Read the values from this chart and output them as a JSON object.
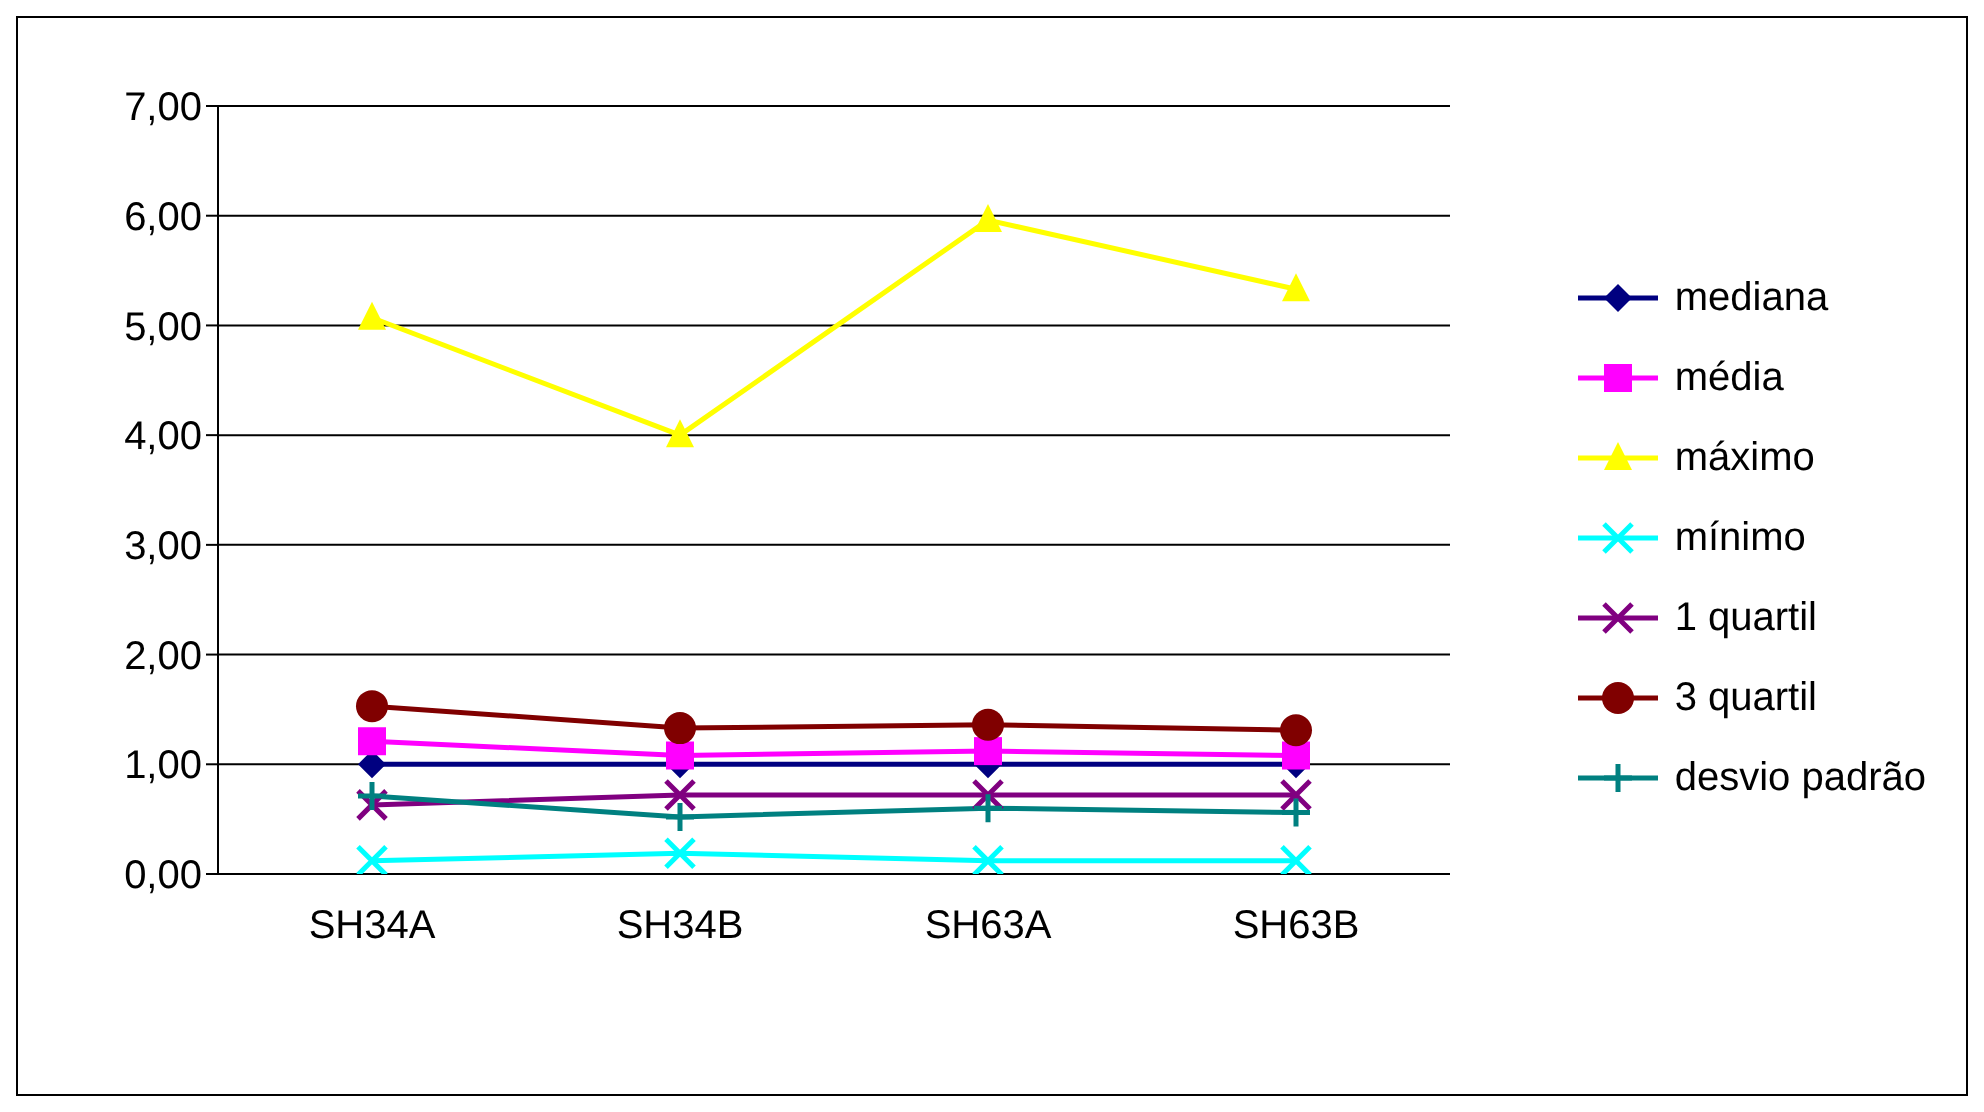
{
  "chart_data": {
    "type": "line",
    "categories": [
      "SH34A",
      "SH34B",
      "SH63A",
      "SH63B"
    ],
    "series": [
      {
        "name": "mediana",
        "color": "#000080",
        "marker": "diamond",
        "values": [
          1.0,
          1.0,
          1.0,
          1.0
        ]
      },
      {
        "name": "média",
        "color": "#ff00ff",
        "marker": "square",
        "values": [
          1.21,
          1.08,
          1.12,
          1.08
        ]
      },
      {
        "name": "máximo",
        "color": "#ffff00",
        "marker": "triangle",
        "values": [
          5.07,
          4.0,
          5.96,
          5.33
        ]
      },
      {
        "name": "mínimo",
        "color": "#00ffff",
        "marker": "cross",
        "values": [
          0.12,
          0.19,
          0.12,
          0.12
        ]
      },
      {
        "name": "1 quartil",
        "color": "#800080",
        "marker": "cross",
        "values": [
          0.63,
          0.72,
          0.72,
          0.72
        ]
      },
      {
        "name": "3 quartil",
        "color": "#800000",
        "marker": "circle",
        "values": [
          1.53,
          1.33,
          1.36,
          1.31
        ]
      },
      {
        "name": "desvio padrão",
        "color": "#008080",
        "marker": "plus",
        "values": [
          0.71,
          0.52,
          0.6,
          0.56
        ]
      }
    ],
    "ylim": [
      0,
      7
    ],
    "yticks": [
      {
        "value": 0,
        "label": "0,00"
      },
      {
        "value": 1,
        "label": "1,00"
      },
      {
        "value": 2,
        "label": "2,00"
      },
      {
        "value": 3,
        "label": "3,00"
      },
      {
        "value": 4,
        "label": "4,00"
      },
      {
        "value": 5,
        "label": "5,00"
      },
      {
        "value": 6,
        "label": "6,00"
      },
      {
        "value": 7,
        "label": "7,00"
      }
    ],
    "grid": "y",
    "legend": "right"
  }
}
